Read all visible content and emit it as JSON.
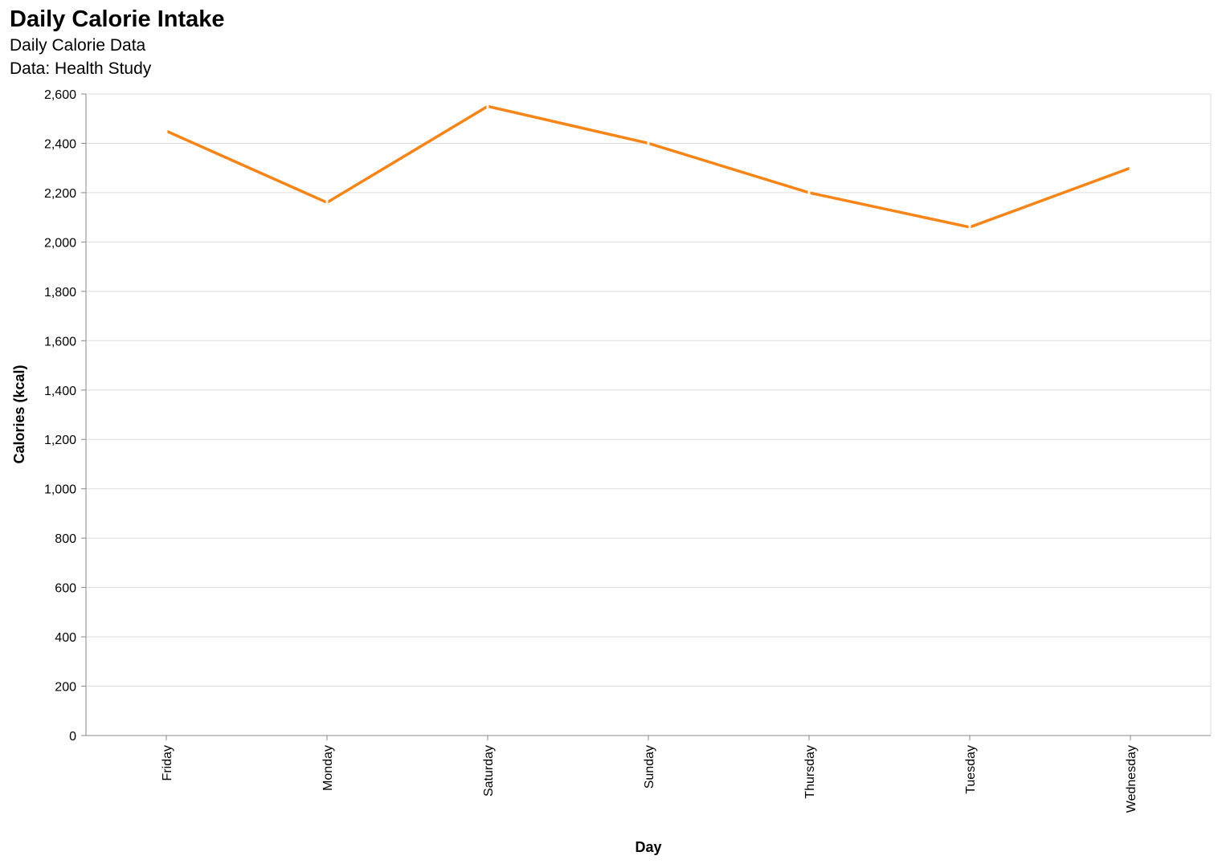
{
  "chart_data": {
    "type": "line",
    "title": "Daily Calorie Intake",
    "subtitle": [
      "Daily Calorie Data",
      "Data: Health Study"
    ],
    "xlabel": "Day",
    "ylabel": "Calories (kcal)",
    "categories": [
      "Friday",
      "Monday",
      "Saturday",
      "Sunday",
      "Thursday",
      "Tuesday",
      "Wednesday"
    ],
    "series": [
      {
        "name": "Calories",
        "values": [
          2450,
          2160,
          2550,
          2400,
          2200,
          2060,
          2300
        ]
      }
    ],
    "ylim": [
      0,
      2600
    ],
    "yticks": [
      0,
      200,
      400,
      600,
      800,
      1000,
      1200,
      1400,
      1600,
      1800,
      2000,
      2200,
      2400,
      2600
    ],
    "ytick_labels": [
      "0",
      "200",
      "400",
      "600",
      "800",
      "1,000",
      "1,200",
      "1,400",
      "1,600",
      "1,800",
      "2,000",
      "2,200",
      "2,400",
      "2,600"
    ],
    "grid": true,
    "line_color": "#f58518",
    "grid_color": "#dddddd",
    "axis_color": "#888888"
  }
}
